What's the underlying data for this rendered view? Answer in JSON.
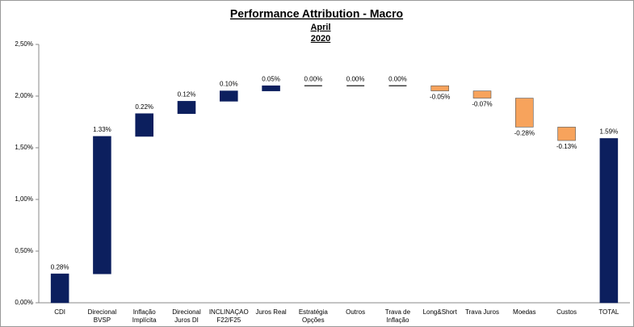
{
  "chart_data": {
    "type": "waterfall",
    "title": "Performance Attribution - Macro",
    "subtitle": [
      "April",
      "2020"
    ],
    "categories": [
      "CDI",
      "Direcional\nBVSP",
      "Inflação\nImplícita",
      "Direcional\nJuros DI",
      "INCLINAÇAO\nF22/F25",
      "Juros Real",
      "Estratégia\nOpções",
      "Outros",
      "Trava de\nInflação",
      "Long&Short",
      "Trava Juros",
      "Moedas",
      "Custos",
      "TOTAL"
    ],
    "values": [
      0.28,
      1.33,
      0.22,
      0.12,
      0.1,
      0.05,
      0.0,
      0.0,
      0.0,
      -0.05,
      -0.07,
      -0.28,
      -0.13,
      1.59
    ],
    "value_labels": [
      "0.28%",
      "1.33%",
      "0.22%",
      "0.12%",
      "0.10%",
      "0.05%",
      "0.00%",
      "0.00%",
      "0.00%",
      "-0.05%",
      "-0.07%",
      "-0.28%",
      "-0.13%",
      "1.59%"
    ],
    "colors": {
      "increase": "#0c1f5e",
      "decrease": "#f7a35c"
    },
    "ylim": [
      0,
      2.5
    ],
    "yticks": [
      {
        "value": 0,
        "label": "0,00%"
      },
      {
        "value": 0.5,
        "label": "0,50%"
      },
      {
        "value": 1,
        "label": "1,00%"
      },
      {
        "value": 1.5,
        "label": "1,50%"
      },
      {
        "value": 2,
        "label": "2,00%"
      },
      {
        "value": 2.5,
        "label": "2,50%"
      }
    ],
    "grid": false
  }
}
